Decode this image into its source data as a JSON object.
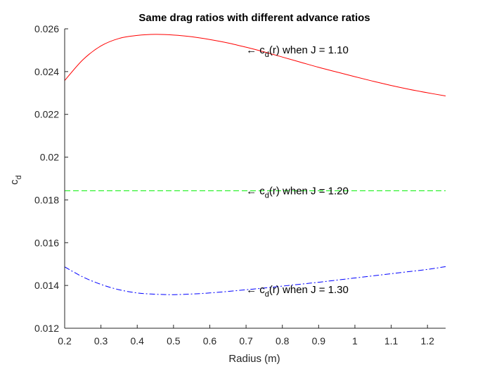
{
  "chart_data": {
    "type": "line",
    "title": "Same drag ratios with different advance ratios",
    "xlabel": "Radius (m)",
    "ylabel": {
      "base": "c",
      "sub": "d"
    },
    "xlim": [
      0.2,
      1.25
    ],
    "ylim": [
      0.012,
      0.026
    ],
    "xticks": [
      "0.2",
      "0.3",
      "0.4",
      "0.5",
      "0.6",
      "0.7",
      "0.8",
      "0.9",
      "1",
      "1.1",
      "1.2"
    ],
    "yticks": [
      "0.012",
      "0.014",
      "0.016",
      "0.018",
      "0.02",
      "0.022",
      "0.024",
      "0.026"
    ],
    "grid": false,
    "series": [
      {
        "color": "#ff0000",
        "style": "solid",
        "x": [
          0.2,
          0.25,
          0.3,
          0.35,
          0.4,
          0.45,
          0.5,
          0.55,
          0.6,
          0.65,
          0.7,
          0.75,
          0.8,
          0.85,
          0.9,
          0.95,
          1.0,
          1.05,
          1.1,
          1.15,
          1.2,
          1.25
        ],
        "y": [
          0.02358,
          0.02455,
          0.0252,
          0.02555,
          0.02569,
          0.02574,
          0.02571,
          0.02563,
          0.0255,
          0.02534,
          0.02514,
          0.02492,
          0.02468,
          0.02444,
          0.0242,
          0.02398,
          0.02376,
          0.02355,
          0.02335,
          0.02317,
          0.02301,
          0.02286
        ],
        "annotation": {
          "x": 0.7,
          "y": 0.02502,
          "prefix": "← c",
          "sub": "d",
          "suffix": "(r) when J = 1.10"
        }
      },
      {
        "color": "#00ee00",
        "style": "dashed",
        "x": [
          0.2,
          1.25
        ],
        "y": [
          0.01843,
          0.01843
        ],
        "annotation": {
          "x": 0.7,
          "y": 0.01843,
          "prefix": "← c",
          "sub": "d",
          "suffix": "(r) when J = 1.20"
        }
      },
      {
        "color": "#0000ff",
        "style": "dashdot",
        "x": [
          0.2,
          0.25,
          0.3,
          0.35,
          0.4,
          0.45,
          0.5,
          0.55,
          0.6,
          0.65,
          0.7,
          0.75,
          0.8,
          0.85,
          0.9,
          0.95,
          1.0,
          1.05,
          1.1,
          1.15,
          1.2,
          1.25
        ],
        "y": [
          0.01487,
          0.0144,
          0.01405,
          0.0138,
          0.01365,
          0.01359,
          0.01357,
          0.0136,
          0.01365,
          0.01372,
          0.0138,
          0.01388,
          0.01397,
          0.01406,
          0.01415,
          0.01425,
          0.01435,
          0.01445,
          0.01455,
          0.01465,
          0.01475,
          0.01488
        ],
        "annotation": {
          "x": 0.7,
          "y": 0.0138,
          "prefix": "← c",
          "sub": "d",
          "suffix": "(r) when J = 1.30"
        }
      }
    ]
  }
}
